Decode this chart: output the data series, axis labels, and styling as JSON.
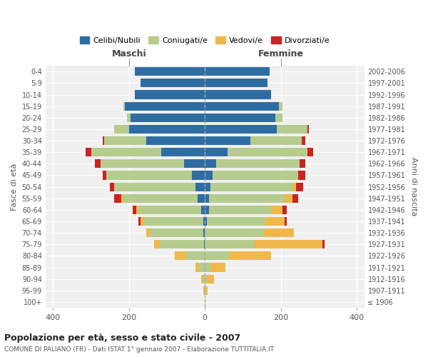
{
  "age_groups": [
    "100+",
    "95-99",
    "90-94",
    "85-89",
    "80-84",
    "75-79",
    "70-74",
    "65-69",
    "60-64",
    "55-59",
    "50-54",
    "45-49",
    "40-44",
    "35-39",
    "30-34",
    "25-29",
    "20-24",
    "15-19",
    "10-14",
    "5-9",
    "0-4"
  ],
  "birth_years": [
    "≤ 1906",
    "1907-1911",
    "1912-1916",
    "1917-1921",
    "1922-1926",
    "1927-1931",
    "1932-1936",
    "1937-1941",
    "1942-1946",
    "1947-1951",
    "1952-1956",
    "1957-1961",
    "1962-1966",
    "1967-1971",
    "1972-1976",
    "1977-1981",
    "1982-1986",
    "1987-1991",
    "1992-1996",
    "1997-2001",
    "2002-2006"
  ],
  "males": {
    "celibi": [
      0,
      0,
      0,
      0,
      0,
      3,
      5,
      5,
      10,
      20,
      25,
      35,
      55,
      115,
      155,
      200,
      195,
      210,
      185,
      170,
      185
    ],
    "coniugati": [
      0,
      2,
      5,
      15,
      50,
      115,
      140,
      155,
      165,
      195,
      215,
      225,
      220,
      185,
      110,
      40,
      10,
      5,
      0,
      0,
      0
    ],
    "vedovi": [
      0,
      2,
      5,
      10,
      30,
      15,
      10,
      10,
      5,
      5,
      0,
      0,
      0,
      0,
      0,
      0,
      0,
      0,
      0,
      0,
      0
    ],
    "divorziati": [
      0,
      0,
      0,
      0,
      0,
      0,
      0,
      5,
      10,
      20,
      10,
      10,
      15,
      15,
      5,
      0,
      0,
      0,
      0,
      0,
      0
    ]
  },
  "females": {
    "nubili": [
      0,
      0,
      0,
      0,
      0,
      0,
      0,
      5,
      10,
      10,
      15,
      20,
      30,
      60,
      120,
      190,
      185,
      195,
      175,
      165,
      170
    ],
    "coniugate": [
      0,
      2,
      5,
      15,
      65,
      130,
      155,
      155,
      165,
      200,
      215,
      225,
      220,
      210,
      135,
      80,
      20,
      10,
      0,
      0,
      0
    ],
    "vedove": [
      2,
      5,
      20,
      40,
      110,
      180,
      80,
      50,
      30,
      20,
      10,
      0,
      0,
      0,
      0,
      0,
      0,
      0,
      0,
      0,
      0
    ],
    "divorziate": [
      0,
      0,
      0,
      0,
      0,
      5,
      0,
      5,
      10,
      15,
      20,
      20,
      15,
      15,
      10,
      5,
      0,
      0,
      0,
      0,
      0
    ]
  },
  "colors": {
    "celibi": "#2e6da4",
    "coniugati": "#b5cc8e",
    "vedovi": "#f0b84b",
    "divorziati": "#cc2222"
  },
  "title": "Popolazione per età, sesso e stato civile - 2007",
  "subtitle": "COMUNE DI PALIANO (FR) - Dati ISTAT 1° gennaio 2007 - Elaborazione TUTTITALIA.IT",
  "xlabel_left": "Maschi",
  "xlabel_right": "Femmine",
  "ylabel_left": "Fasce di età",
  "ylabel_right": "Anni di nascita",
  "xlim": 420,
  "legend_labels": [
    "Celibi/Nubili",
    "Coniugati/e",
    "Vedovi/e",
    "Divorziati/e"
  ],
  "background_color": "#ffffff"
}
